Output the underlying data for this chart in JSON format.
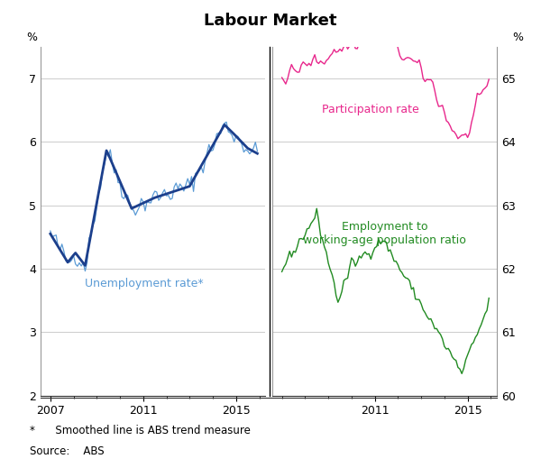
{
  "title": "Labour Market",
  "left_ylabel": "%",
  "right_ylabel": "%",
  "footnote1": "*      Smoothed line is ABS trend measure",
  "footnote2": "Source:    ABS",
  "left_ylim": [
    2,
    7.5
  ],
  "right_ylim": [
    60,
    65.5
  ],
  "left_yticks": [
    2,
    3,
    4,
    5,
    6,
    7
  ],
  "right_yticks": [
    60,
    61,
    62,
    63,
    64,
    65
  ],
  "left_xticks": [
    2007,
    2011,
    2015
  ],
  "right_xticks": [
    2011,
    2015
  ],
  "unemployment_dark_color": "#1c3f8c",
  "unemployment_light_color": "#5b9bd5",
  "participation_color": "#e8278c",
  "employment_ratio_color": "#228B22",
  "grid_color": "#cccccc",
  "spine_color": "#999999"
}
